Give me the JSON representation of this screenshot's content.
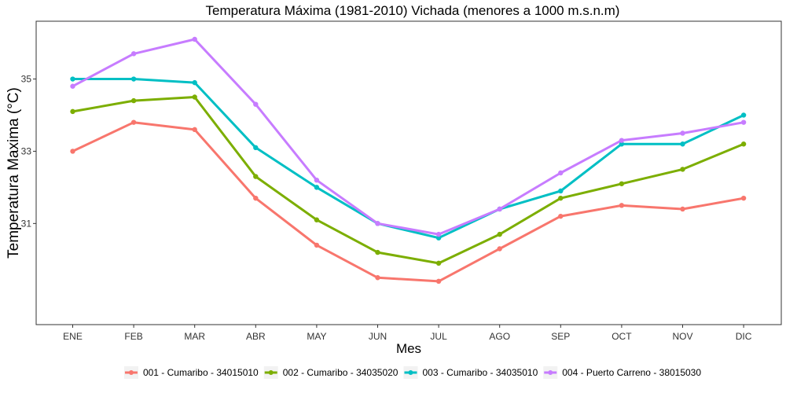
{
  "chart_data": {
    "type": "line",
    "title": "Temperatura Máxima (1981-2010) Vichada (menores a 1000 m.s.n.m)",
    "xlabel": "Mes",
    "ylabel": "Temperatura Maxima (°C)",
    "categories": [
      "ENE",
      "FEB",
      "MAR",
      "ABR",
      "MAY",
      "JUN",
      "JUL",
      "AGO",
      "SEP",
      "OCT",
      "NOV",
      "DIC"
    ],
    "yticks": [
      31,
      33,
      35
    ],
    "ylim": [
      28.2,
      36.6
    ],
    "grid": false,
    "legend_position": "bottom",
    "series": [
      {
        "name": "001 - Cumaribo - 34015010",
        "color": "#F8766D",
        "values": [
          33.0,
          33.8,
          33.6,
          31.7,
          30.4,
          29.5,
          29.4,
          30.3,
          31.2,
          31.5,
          31.4,
          31.7
        ]
      },
      {
        "name": "002 - Cumaribo - 34035020",
        "color": "#7CAE00",
        "values": [
          34.1,
          34.4,
          34.5,
          32.3,
          31.1,
          30.2,
          29.9,
          30.7,
          31.7,
          32.1,
          32.5,
          33.2
        ]
      },
      {
        "name": "003 - Cumaribo - 34035010",
        "color": "#00BFC4",
        "values": [
          35.0,
          35.0,
          34.9,
          33.1,
          32.0,
          31.0,
          30.6,
          31.4,
          31.9,
          33.2,
          33.2,
          34.0
        ]
      },
      {
        "name": "004 - Puerto Carreno - 38015030",
        "color": "#C77CFF",
        "values": [
          34.8,
          35.7,
          36.1,
          34.3,
          32.2,
          31.0,
          30.7,
          31.4,
          32.4,
          33.3,
          33.5,
          33.8
        ]
      }
    ]
  }
}
